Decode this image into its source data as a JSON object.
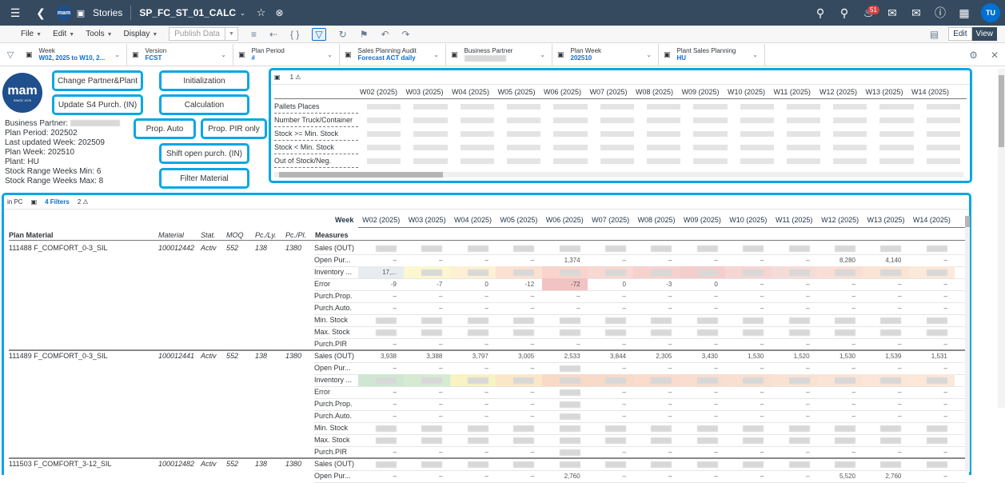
{
  "shell": {
    "logo": "mam",
    "stories": "Stories",
    "title": "SP_FC_ST_01_CALC",
    "notifications": "51",
    "user": "TU"
  },
  "toolbar": {
    "menus": [
      "File",
      "Edit",
      "Tools",
      "Display"
    ],
    "publish": "Publish Data",
    "edit": "Edit",
    "view": "View"
  },
  "filters": [
    {
      "label": "Week",
      "value": "W02, 2025 to W10, 2..."
    },
    {
      "label": "Version",
      "value": "FCST"
    },
    {
      "label": "Plan Period",
      "value": "#"
    },
    {
      "label": "Sales Planning Audit",
      "value": "Forecast ACT daily"
    },
    {
      "label": "Business Partner",
      "value": ""
    },
    {
      "label": "Plan Week",
      "value": "202510"
    },
    {
      "label": "Plant Sales Planning",
      "value": "HU"
    }
  ],
  "logo": {
    "main": "mam",
    "sub": "SINCE 1976"
  },
  "info": {
    "business_partner": "Business Partner:",
    "plan_period": "Plan Period: 202502",
    "last_updated": "Last updated Week: 202509",
    "plan_week": "Plan Week: 202510",
    "plant": "Plant: HU",
    "range_min": "Stock Range Weeks Min: 6",
    "range_max": "Stock Range Weeks Max: 8"
  },
  "actions": {
    "change_partner": "Change Partner&Plant",
    "update_s4": "Update S4 Purch. (IN)",
    "initialization": "Initialization",
    "calculation": "Calculation",
    "prop_auto": "Prop. Auto",
    "prop_pir": "Prop. PIR only",
    "shift_open": "Shift open purch. (IN)",
    "filter_material": "Filter Material"
  },
  "summary": {
    "warnings": "1",
    "weeks": [
      "W02 (2025)",
      "W03 (2025)",
      "W04 (2025)",
      "W05 (2025)",
      "W06 (2025)",
      "W07 (2025)",
      "W08 (2025)",
      "W09 (2025)",
      "W10 (2025)",
      "W11 (2025)",
      "W12 (2025)",
      "W13 (2025)",
      "W14 (2025)"
    ],
    "rows": [
      "Pallets Places",
      "Number Truck/Container",
      "Stock >= Min. Stock",
      "Stock < Min. Stock",
      "Out of Stock/Neg."
    ]
  },
  "main": {
    "currency": "in PC",
    "filters": "4 Filters",
    "warnings": "2",
    "week_label": "Week",
    "weeks": [
      "W02 (2025)",
      "W03 (2025)",
      "W04 (2025)",
      "W05 (2025)",
      "W06 (2025)",
      "W07 (2025)",
      "W08 (2025)",
      "W09 (2025)",
      "W10 (2025)",
      "W11 (2025)",
      "W12 (2025)",
      "W13 (2025)",
      "W14 (2025)"
    ],
    "columns": {
      "plan_material": "Plan Material",
      "material": "Material",
      "stat": "Stat.",
      "moq": "MOQ",
      "pcly": "Pc./Ly.",
      "pcpl": "Pc./Pl.",
      "measures": "Measures"
    },
    "measures": [
      "Sales (OUT)",
      "Open Pur...",
      "Inventory ...",
      "Error",
      "Purch.Prop.",
      "Purch.Auto.",
      "Min. Stock",
      "Max. Stock",
      "Purch.PIR"
    ],
    "materials": [
      {
        "name": "111488 F_COMFORT_0-3_SIL",
        "material": "100012442",
        "stat": "Activ",
        "moq": "552",
        "pcly": "138",
        "pcpl": "1380"
      },
      {
        "name": "111489 F_COMFORT_0-3_SIL",
        "material": "100012441",
        "stat": "Activ",
        "moq": "552",
        "pcly": "138",
        "pcpl": "1380"
      },
      {
        "name": "111503 F_COMFORT_3-12_SIL",
        "material": "100012482",
        "stat": "Activ",
        "moq": "552",
        "pcly": "138",
        "pcpl": "1380"
      }
    ],
    "values": {
      "open_pur_1": [
        "–",
        "–",
        "–",
        "–",
        "1,374",
        "–",
        "–",
        "–",
        "–",
        "–",
        "8,280",
        "4,140",
        "–"
      ],
      "inventory_1": [
        "17,..."
      ],
      "error_1": [
        "-9",
        "-7",
        "0",
        "-12",
        "-72",
        "0",
        "-3",
        "0",
        "–",
        "–",
        "–",
        "–",
        "–"
      ],
      "dash": [
        "–",
        "–",
        "–",
        "–",
        "–",
        "–",
        "–",
        "–",
        "–",
        "–",
        "–",
        "–",
        "–"
      ],
      "sales_2": [
        "3,938",
        "3,388",
        "3,797",
        "3,005",
        "2,533",
        "3,844",
        "2,305",
        "3,430",
        "1,530",
        "1,520",
        "1,530",
        "1,539",
        "1,531"
      ],
      "open_pur_3": [
        "–",
        "–",
        "–",
        "–",
        "2,760",
        "–",
        "–",
        "–",
        "–",
        "–",
        "5,520",
        "2,760",
        "–"
      ]
    }
  }
}
